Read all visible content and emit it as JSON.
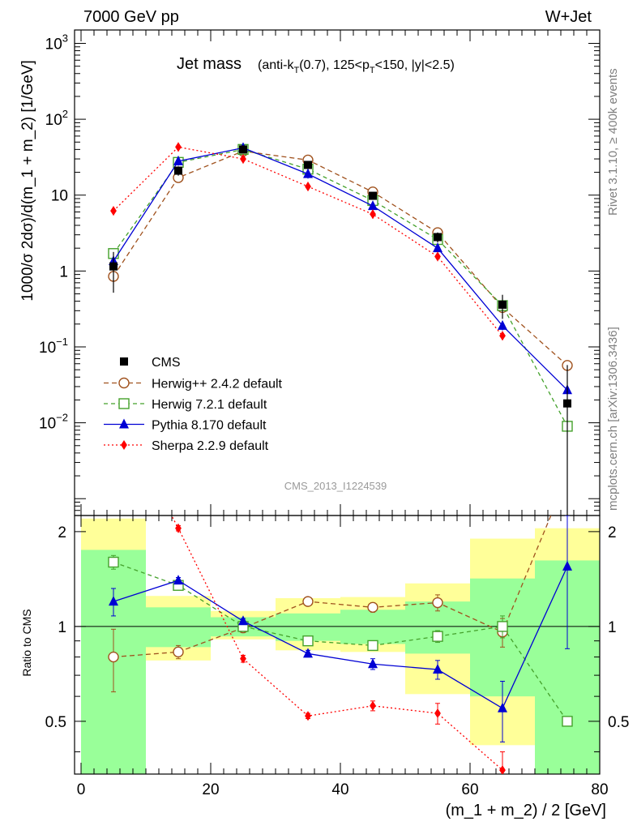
{
  "header": {
    "energy": "7000 GeV pp",
    "process": "W+Jet"
  },
  "side_labels": {
    "rivet": "Rivet 3.1.10, ≥ 400k events",
    "source": "mcplots.cern.ch [arXiv:1306.3436]"
  },
  "watermark": "CMS_2013_I1224539",
  "chart_data": {
    "type": "scatter",
    "title": "Jet mass",
    "subtitle_html": "(anti-k_T(0.7), 125<p_T<150, |y|<2.5)",
    "subtitle_parts": [
      "(anti-k",
      "T",
      "(0.7), 125<p",
      "T",
      "<150, |y|<2.5)"
    ],
    "xlabel": "(m_1 + m_2) / 2 [GeV]",
    "ylabel": "1000/σ 2dσ)/d(m_1 + m_2) [1/GeV]",
    "ratio_ylabel": "Ratio to CMS",
    "xlim": [
      -1,
      80
    ],
    "ylim": [
      0.0006,
      1500
    ],
    "yscale": "log",
    "ratio_ylim": [
      0.34,
      2.25
    ],
    "x_ticks": [
      "0",
      "20",
      "40",
      "60",
      "80"
    ],
    "y_ticks": [
      "10^-2",
      "10^-1",
      "1",
      "10",
      "10^2",
      "10^3"
    ],
    "ratio_ticks": [
      "0.5",
      "1",
      "2"
    ],
    "x": [
      5,
      15,
      25,
      35,
      45,
      55,
      65,
      75
    ],
    "bin_edges": [
      0,
      10,
      20,
      30,
      40,
      50,
      60,
      70,
      80
    ],
    "data": {
      "name": "CMS",
      "values": [
        1.15,
        21,
        40,
        25,
        9.8,
        2.8,
        0.36,
        0.018
      ],
      "band_stat": [
        [
          0.28,
          1.75
        ],
        [
          0.86,
          1.15
        ],
        [
          0.93,
          1.07
        ],
        [
          0.9,
          1.1
        ],
        [
          0.88,
          1.13
        ],
        [
          0.82,
          1.2
        ],
        [
          0.6,
          1.42
        ],
        [
          0.26,
          1.62
        ]
      ],
      "band_total": [
        [
          0.2,
          2.2
        ],
        [
          0.78,
          1.25
        ],
        [
          0.91,
          1.12
        ],
        [
          0.84,
          1.23
        ],
        [
          0.83,
          1.24
        ],
        [
          0.61,
          1.37
        ],
        [
          0.42,
          1.9
        ],
        [
          0.24,
          2.05
        ]
      ]
    },
    "series": [
      {
        "name": "Herwig++ 2.4.2 default",
        "color": "#a0521e",
        "marker": "circle-open",
        "dash": "6,4",
        "values": [
          0.85,
          17,
          38,
          29,
          11,
          3.2,
          0.33,
          0.057
        ],
        "ratio": [
          0.8,
          0.83,
          0.99,
          1.2,
          1.15,
          1.19,
          0.96,
          3.0
        ],
        "ratio_err": [
          0.18,
          0.04,
          0.02,
          0.03,
          0.04,
          0.07,
          0.1,
          0
        ]
      },
      {
        "name": "Herwig 7.2.1 default",
        "color": "#44a12b",
        "marker": "square-open",
        "dash": "5,4",
        "values": [
          1.7,
          27,
          40,
          22,
          8.5,
          2.6,
          0.35,
          0.009
        ],
        "ratio": [
          1.6,
          1.35,
          1.0,
          0.9,
          0.87,
          0.93,
          1.0,
          0.5
        ],
        "ratio_err": [
          0.08,
          0.03,
          0.02,
          0.02,
          0.03,
          0.04,
          0.08,
          0
        ]
      },
      {
        "name": "Pythia 8.170 default",
        "color": "#0000d4",
        "marker": "triangle",
        "dash": "",
        "values": [
          1.35,
          28,
          42,
          19,
          7.2,
          2.0,
          0.19,
          0.027
        ],
        "ratio": [
          1.2,
          1.4,
          1.04,
          0.82,
          0.76,
          0.73,
          0.55,
          1.55
        ],
        "ratio_err": [
          0.12,
          0.03,
          0.02,
          0.02,
          0.03,
          0.05,
          0.12,
          0.7
        ]
      },
      {
        "name": "Sherpa 2.2.9 default",
        "color": "#ff0000",
        "marker": "diamond",
        "dash": "2,3",
        "values": [
          6.2,
          43,
          30,
          13,
          5.6,
          1.55,
          0.14,
          null
        ],
        "ratio": [
          5.0,
          2.05,
          0.79,
          0.52,
          0.56,
          0.53,
          0.35,
          null
        ],
        "ratio_err": [
          0,
          0.04,
          0.02,
          0.01,
          0.02,
          0.04,
          0.05,
          0
        ]
      }
    ],
    "legend_position": "lower-left"
  }
}
